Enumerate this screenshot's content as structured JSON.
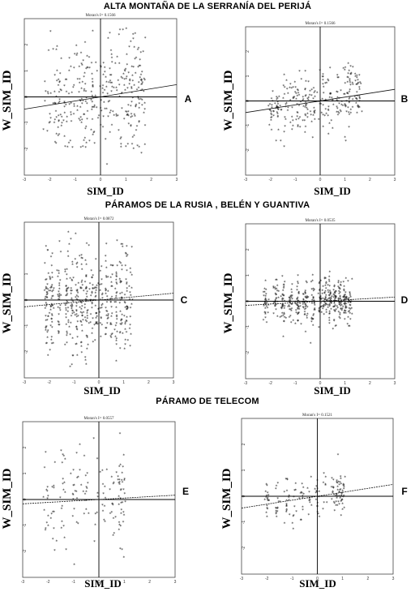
{
  "sections": [
    {
      "title": "ALTA MONTAÑA DE LA SERRANÍA DEL PERIJÁ"
    },
    {
      "title": "PÁRAMOS DE LA RUSIA , BELÉN Y GUANTIVA"
    },
    {
      "title": "PÁRAMO DE TELECOM"
    }
  ],
  "chart_data": [
    {
      "panel_letter": "A",
      "type": "scatter",
      "title": "Moran's I= 0.1566",
      "xlabel": "SIM_ID",
      "ylabel": "W_SIM_ID",
      "xlim": [
        -3,
        3
      ],
      "ylim": [
        -3,
        3
      ],
      "x_ticks": [
        "-3",
        "-2",
        "-1",
        "0",
        "1",
        "2",
        "3"
      ],
      "y_ticks": [
        "2",
        "1",
        "0",
        "-1",
        "-2"
      ],
      "slope": 0.1566
    },
    {
      "panel_letter": "B",
      "type": "scatter",
      "title": "Moran's I= 0.1566",
      "xlabel": "SIM_ID",
      "ylabel": "W_SIM_ID",
      "xlim": [
        -3,
        3
      ],
      "ylim": [
        -3,
        3
      ],
      "x_ticks": [
        "-3",
        "-2",
        "-1",
        "0",
        "1",
        "2",
        "3"
      ],
      "y_ticks": [
        "2",
        "1",
        "0",
        "-1",
        "-2"
      ],
      "slope": 0.1566
    },
    {
      "panel_letter": "C",
      "type": "scatter",
      "title": "Moran's I= 0.0872",
      "xlabel": "SIM_ID",
      "ylabel": "W_SIM_ID",
      "xlim": [
        -3,
        3
      ],
      "ylim": [
        -3,
        3
      ],
      "x_ticks": [
        "-3",
        "-2",
        "-1",
        "0",
        "1",
        "2",
        "3"
      ],
      "y_ticks": [
        "1",
        "0",
        "-1",
        "-2"
      ],
      "slope": 0.0872
    },
    {
      "panel_letter": "D",
      "type": "scatter",
      "title": "Moran's I= 0.0535",
      "xlabel": "SIM_ID",
      "ylabel": "W_SIM_ID",
      "xlim": [
        -3,
        3
      ],
      "ylim": [
        -3,
        3
      ],
      "x_ticks": [
        "-3",
        "-2",
        "-1",
        "0",
        "1",
        "2",
        "3"
      ],
      "y_ticks": [
        "2",
        "1",
        "0",
        "-1",
        "-2"
      ],
      "slope": 0.0535
    },
    {
      "panel_letter": "E",
      "type": "scatter",
      "title": "Moran's I= 0.0557",
      "xlabel": "SIM_ID",
      "ylabel": "W_SIM_ID",
      "xlim": [
        -3,
        3
      ],
      "ylim": [
        -3,
        3
      ],
      "x_ticks": [
        "-3",
        "-2",
        "-1",
        "0",
        "1",
        "2",
        "3"
      ],
      "y_ticks": [
        "2",
        "1",
        "0",
        "-1",
        "-2"
      ],
      "slope": 0.0557
    },
    {
      "panel_letter": "F",
      "type": "scatter",
      "title": "Moran's I= 0.1521",
      "xlabel": "SIM_ID",
      "ylabel": "W_SIM_ID",
      "xlim": [
        -3,
        3
      ],
      "ylim": [
        -3,
        3
      ],
      "x_ticks": [
        "-3",
        "-2",
        "-1",
        "0",
        "1",
        "2",
        "3"
      ],
      "y_ticks": [
        "2",
        "1",
        "0",
        "-1",
        "-2"
      ],
      "slope": 0.1521
    }
  ]
}
